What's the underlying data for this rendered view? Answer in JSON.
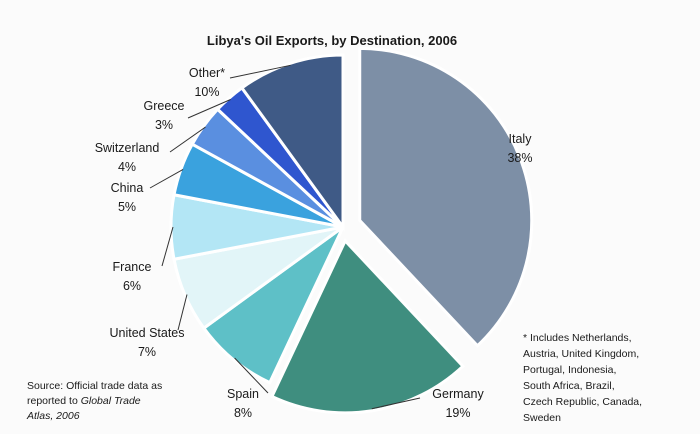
{
  "chart_data": {
    "type": "pie",
    "title": "Libya's Oil Exports, by Destination, 2006",
    "unit": "%",
    "slices": [
      {
        "label": "Italy",
        "value": 38,
        "value_label": "38%",
        "color": "#7d8fa6"
      },
      {
        "label": "Germany",
        "value": 19,
        "value_label": "19%",
        "color": "#3f8e7f"
      },
      {
        "label": "Spain",
        "value": 8,
        "value_label": "8%",
        "color": "#5ec0c7"
      },
      {
        "label": "United States",
        "value": 7,
        "value_label": "7%",
        "color": "#e2f5f8"
      },
      {
        "label": "France",
        "value": 6,
        "value_label": "6%",
        "color": "#b3e6f5"
      },
      {
        "label": "China",
        "value": 5,
        "value_label": "5%",
        "color": "#3aa2de"
      },
      {
        "label": "Switzerland",
        "value": 4,
        "value_label": "4%",
        "color": "#5a8fe0"
      },
      {
        "label": "Greece",
        "value": 3,
        "value_label": "3%",
        "color": "#2f56cf"
      },
      {
        "label": "Other*",
        "value": 10,
        "value_label": "10%",
        "color": "#3f5a86"
      }
    ],
    "exploded": [
      "Italy",
      "Germany"
    ],
    "footnote": [
      "* Includes Netherlands,",
      "Austria, United Kingdom,",
      "Portugal, Indonesia,",
      "South Africa, Brazil,",
      "Czech Republic, Canada,",
      "Sweden"
    ],
    "source": {
      "line1": "Source: Official trade data as",
      "line2_prefix": "reported to ",
      "line2_italic": "Global Trade",
      "line3_italic": "Atlas, 2006"
    }
  }
}
